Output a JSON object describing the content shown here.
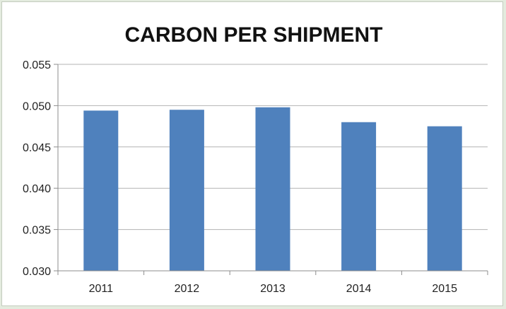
{
  "chart_data": {
    "type": "bar",
    "title": "CARBON PER SHIPMENT",
    "xlabel": "",
    "ylabel": "",
    "categories": [
      "2011",
      "2012",
      "2013",
      "2014",
      "2015"
    ],
    "values": [
      0.0494,
      0.0495,
      0.0498,
      0.048,
      0.0475
    ],
    "ylim": [
      0.03,
      0.055
    ],
    "yticks": [
      "0.030",
      "0.035",
      "0.040",
      "0.045",
      "0.050",
      "0.055"
    ],
    "grid": true,
    "legend": "none",
    "colors": {
      "bar": "#4f81bd",
      "grid": "#b3b3b3",
      "axis": "#8c8c8c"
    }
  }
}
